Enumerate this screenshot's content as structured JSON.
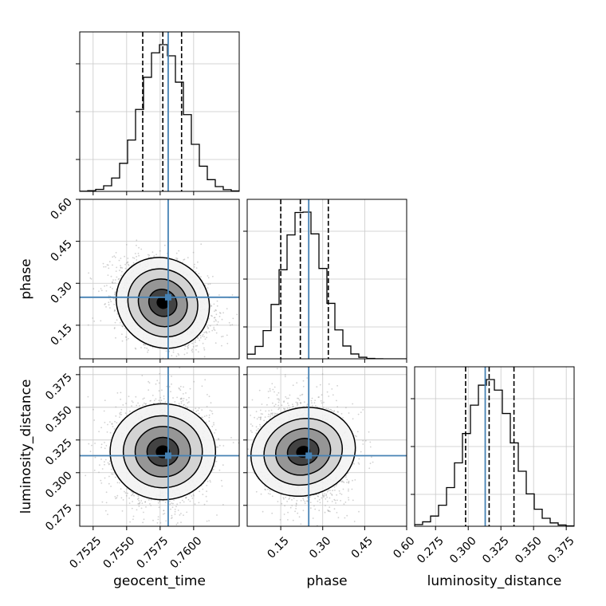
{
  "chart_data": {
    "type": "corner",
    "parameters": [
      {
        "key": "geocent_time",
        "label": "geocent_time",
        "range": [
          0.7515,
          0.7634
        ],
        "ticks": [
          "0.7525",
          "0.7550",
          "0.7575",
          "0.7600"
        ],
        "tick_values": [
          0.7525,
          0.755,
          0.7575,
          0.76
        ],
        "truth": 0.7581,
        "quantiles": [
          0.7562,
          0.7577,
          0.7591
        ],
        "mean": 0.7577,
        "std": 0.0016
      },
      {
        "key": "phase",
        "label": "phase",
        "range": [
          0.03,
          0.6
        ],
        "ticks": [
          "0.15",
          "0.30",
          "0.45",
          "0.60"
        ],
        "tick_values": [
          0.15,
          0.3,
          0.45,
          0.6
        ],
        "truth": 0.25,
        "quantiles": [
          0.15,
          0.22,
          0.32
        ],
        "mean": 0.23,
        "std": 0.07
      },
      {
        "key": "luminosity_distance",
        "label": "luminosity_distance",
        "range": [
          0.259,
          0.381
        ],
        "ticks": [
          "0.275",
          "0.300",
          "0.325",
          "0.350",
          "0.375"
        ],
        "tick_values": [
          0.275,
          0.3,
          0.325,
          0.35,
          0.375
        ],
        "truth": 0.313,
        "quantiles": [
          0.298,
          0.316,
          0.335
        ],
        "mean": 0.316,
        "std": 0.018
      }
    ],
    "truth_color": "#4682b4",
    "contour_color": "#000000",
    "quantile_style": "dashed",
    "grid": true,
    "correlations": {
      "geocent_time|phase": -0.3,
      "geocent_time|luminosity_distance": 0.0,
      "phase|luminosity_distance": -0.1
    }
  }
}
